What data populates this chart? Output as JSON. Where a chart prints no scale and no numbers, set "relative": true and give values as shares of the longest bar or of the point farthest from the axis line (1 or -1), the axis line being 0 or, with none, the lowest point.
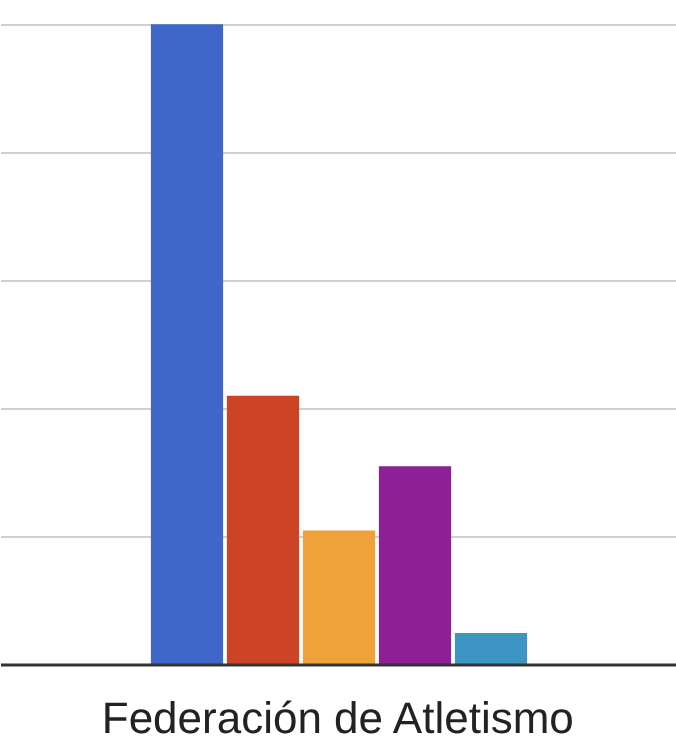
{
  "chart_data": {
    "type": "bar",
    "relative": true,
    "grid": "y",
    "xlabel": "Federación de Atletismo",
    "categories": [
      null,
      null,
      null,
      null,
      null
    ],
    "values": [
      1,
      0.42,
      0.21,
      0.31,
      0.05
    ],
    "colors": [
      "#3f66c9",
      "#cc4325",
      "#f0a23a",
      "#8e1f96",
      "#3d95c4"
    ]
  }
}
